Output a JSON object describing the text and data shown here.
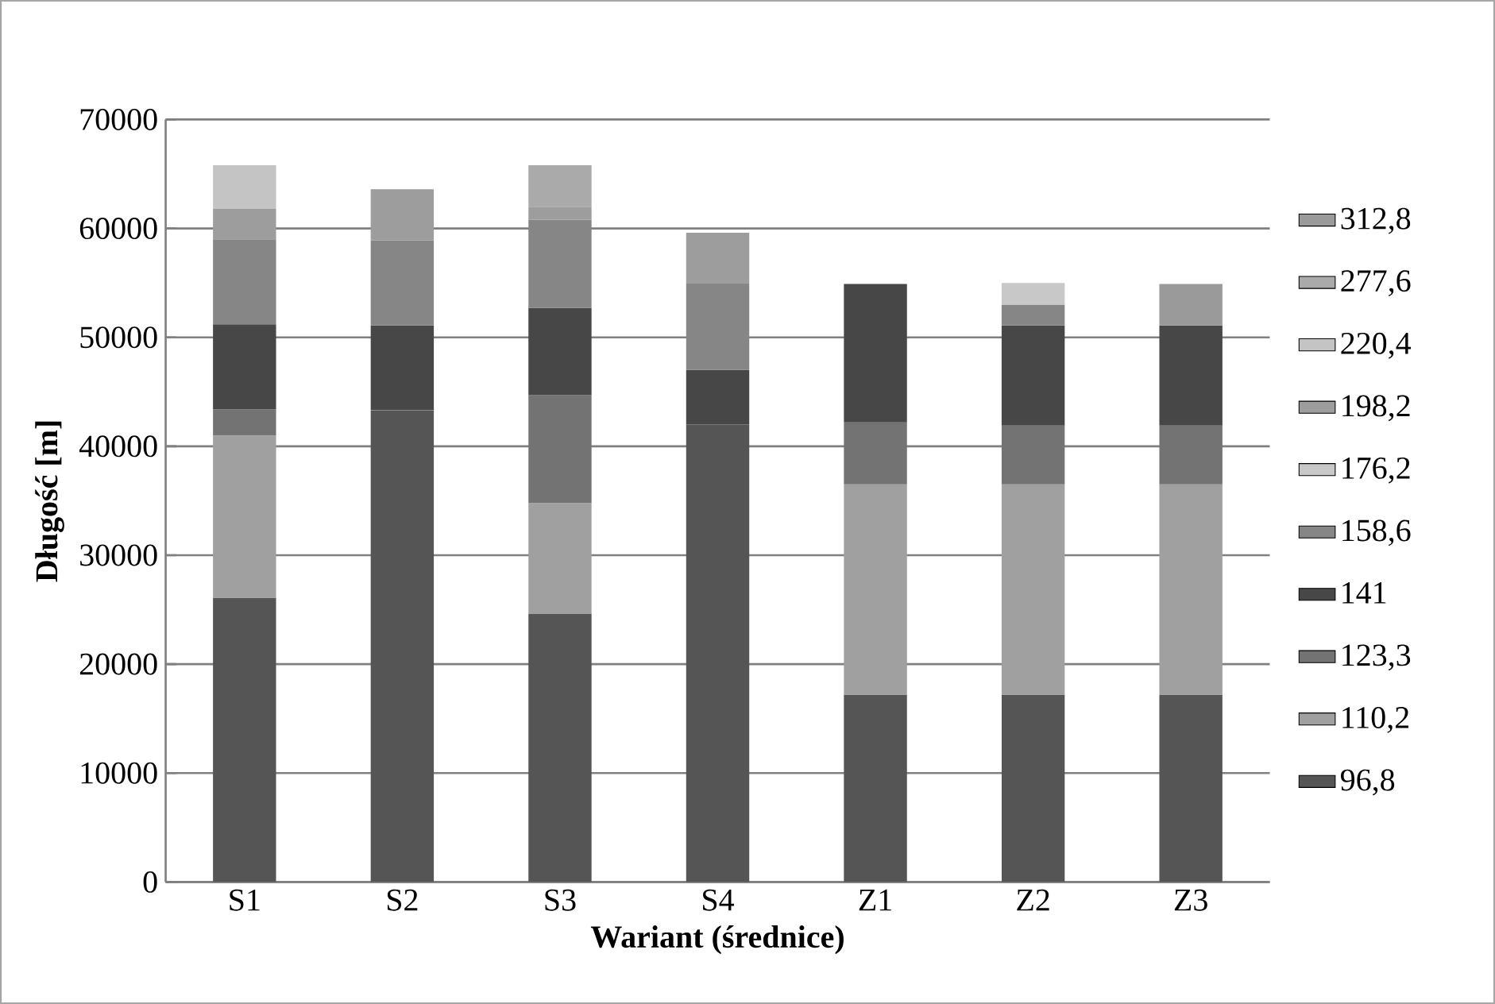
{
  "chart_data": {
    "type": "bar",
    "stacked": true,
    "xlabel": "Wariant (średnice)",
    "ylabel": "Długość [m]",
    "categories": [
      "S1",
      "S2",
      "S3",
      "S4",
      "Z1",
      "Z2",
      "Z3"
    ],
    "series": [
      {
        "name": "96,8",
        "color": "#555555",
        "values": [
          26100,
          43300,
          24600,
          42000,
          17200,
          17200,
          17200
        ]
      },
      {
        "name": "110,2",
        "color": "#a0a0a0",
        "values": [
          14900,
          null,
          10200,
          null,
          19300,
          19300,
          19300
        ]
      },
      {
        "name": "123,3",
        "color": "#737373",
        "values": [
          2400,
          null,
          9900,
          null,
          5700,
          5400,
          5400
        ]
      },
      {
        "name": "141",
        "color": "#474747",
        "values": [
          7800,
          7800,
          8000,
          5000,
          12700,
          9200,
          9200
        ]
      },
      {
        "name": "158,6",
        "color": "#868686",
        "values": [
          7800,
          7800,
          8100,
          8000,
          null,
          1900,
          null
        ]
      },
      {
        "name": "176,2",
        "color": "#c8c8c8",
        "values": [
          null,
          null,
          null,
          null,
          null,
          2000,
          null
        ]
      },
      {
        "name": "198,2",
        "color": "#9d9d9d",
        "values": [
          2800,
          4700,
          1200,
          4600,
          null,
          null,
          null
        ]
      },
      {
        "name": "220,4",
        "color": "#c4c4c4",
        "values": [
          4000,
          null,
          null,
          null,
          null,
          null,
          null
        ]
      },
      {
        "name": "277,6",
        "color": "#aaaaaa",
        "values": [
          null,
          null,
          3800,
          null,
          null,
          null,
          null
        ]
      },
      {
        "name": "312,8",
        "color": "#9a9a9a",
        "values": [
          null,
          null,
          null,
          null,
          null,
          null,
          3800
        ]
      }
    ],
    "ylim": [
      0,
      70000
    ],
    "yticks": [
      0,
      10000,
      20000,
      30000,
      40000,
      50000,
      60000,
      70000
    ],
    "grid": "y",
    "legend": "right"
  }
}
